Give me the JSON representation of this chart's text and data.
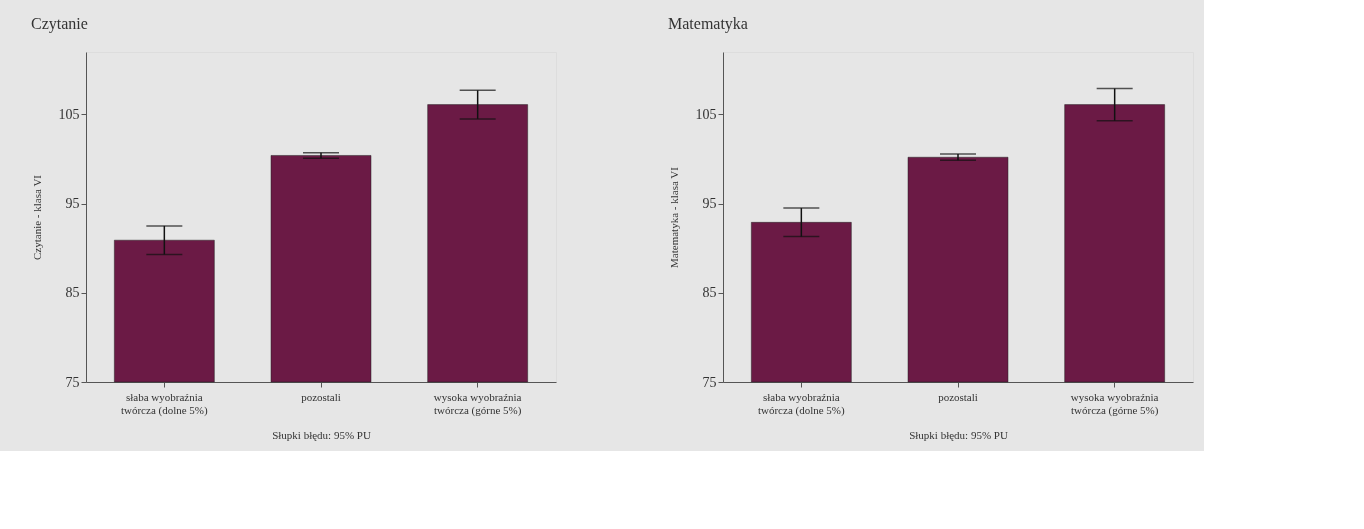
{
  "chart_data": [
    {
      "type": "bar",
      "title": "Czytanie",
      "ylabel": "Czytanie - klasa VI",
      "categories": [
        "słaba wyobraźnia\ntwórcza (dolne 5%)",
        "pozostali",
        "wysoka wyobraźnia\ntwórcza (górne 5%)"
      ],
      "values": [
        90.9,
        100.4,
        106.1
      ],
      "errors": [
        1.6,
        0.3,
        1.6
      ],
      "color": "#6b1a45",
      "ylim": [
        75,
        112
      ],
      "yticks": [
        75,
        85,
        95,
        105
      ],
      "grid": false,
      "annotations": [
        "Słupki błędu: 95% PU"
      ]
    },
    {
      "type": "bar",
      "title": "Matematyka",
      "ylabel": "Matematyka - klasa VI",
      "categories": [
        "słaba wyobraźnia\ntwórcza (dolne 5%)",
        "pozostali",
        "wysoka wyobraźnia\ntwórcza (górne 5%)"
      ],
      "values": [
        92.9,
        100.2,
        106.1
      ],
      "errors": [
        1.6,
        0.35,
        1.8
      ],
      "color": "#6b1a45",
      "ylim": [
        75,
        112
      ],
      "yticks": [
        75,
        85,
        95,
        105
      ],
      "grid": false,
      "annotations": [
        "Słupki błędu: 95% PU"
      ]
    }
  ]
}
